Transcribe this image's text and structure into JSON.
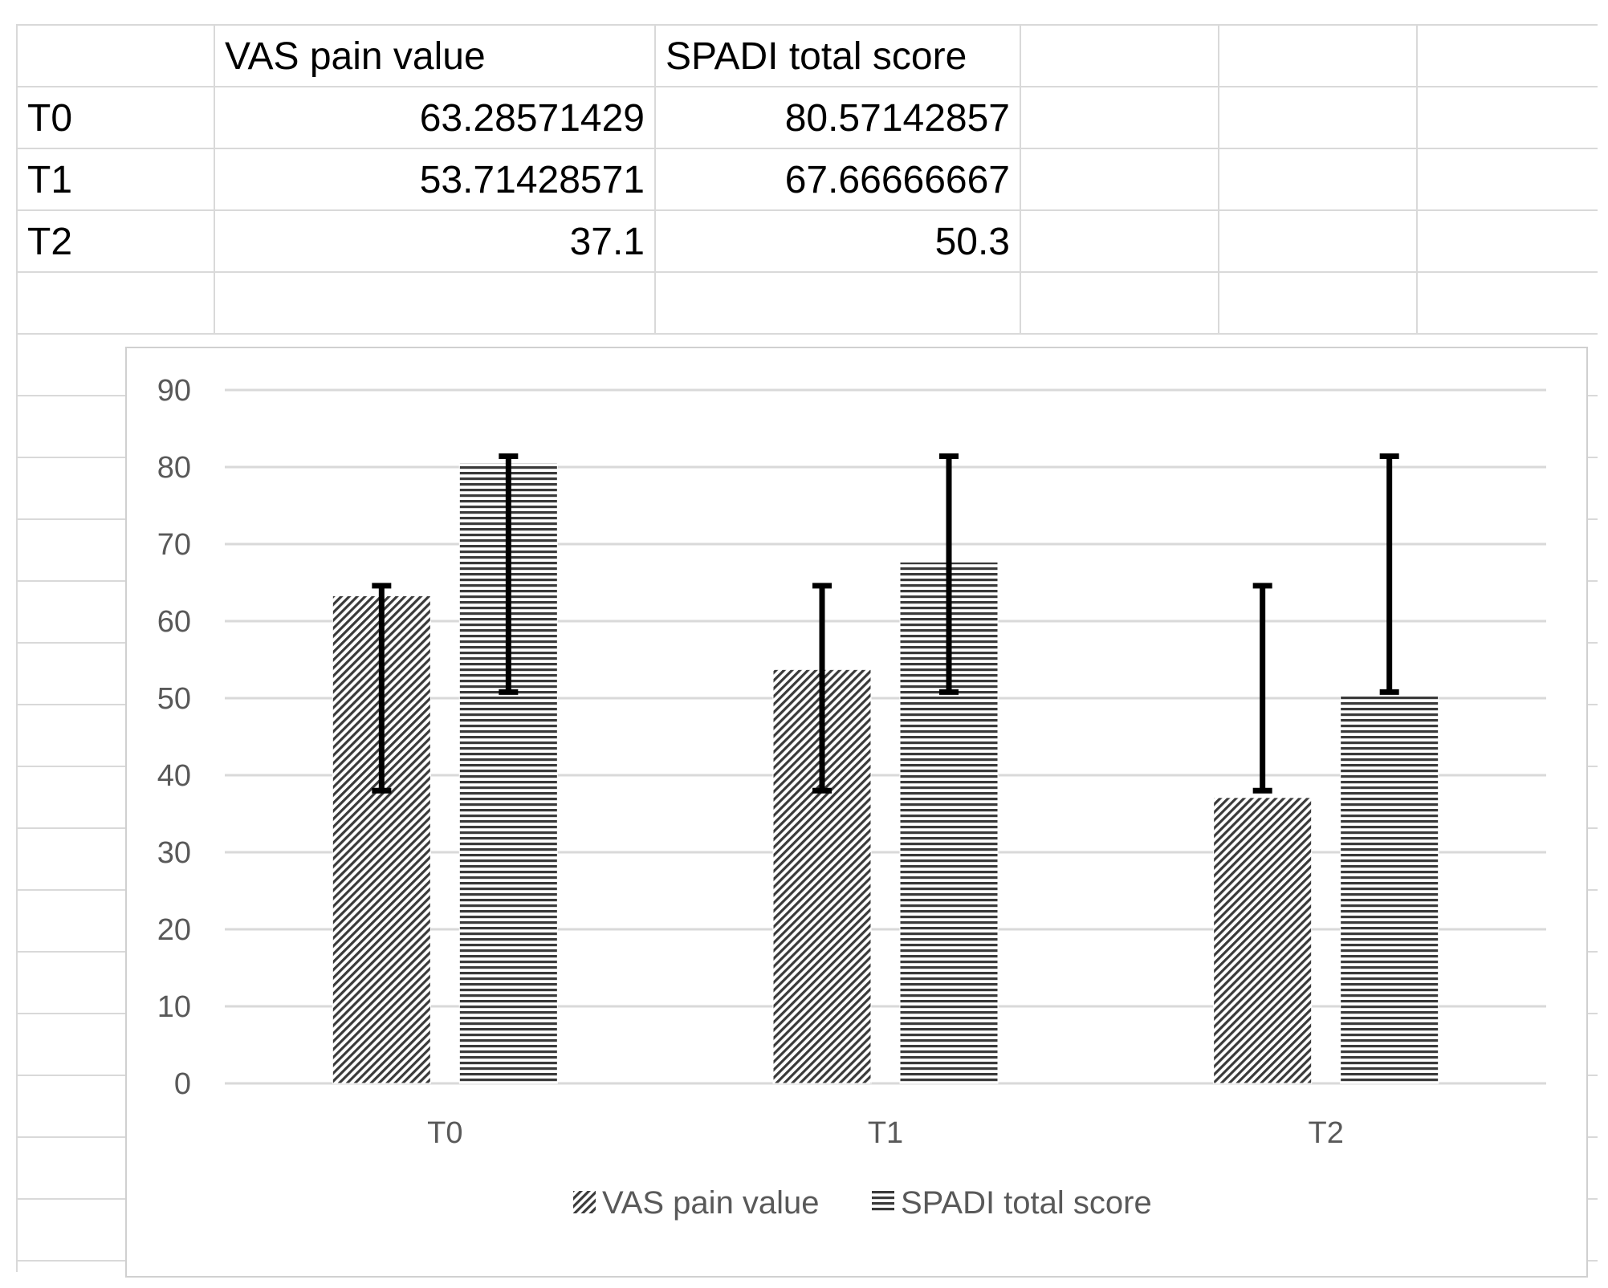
{
  "table": {
    "headers": [
      "",
      "VAS pain value",
      "SPADI total score"
    ],
    "rows": [
      {
        "label": "T0",
        "vas": "63.28571429",
        "spadi": "80.57142857"
      },
      {
        "label": "T1",
        "vas": "53.71428571",
        "spadi": "67.66666667"
      },
      {
        "label": "T2",
        "vas": "37.1",
        "spadi": "50.3"
      }
    ]
  },
  "chart_data": {
    "type": "bar",
    "categories": [
      "T0",
      "T1",
      "T2"
    ],
    "series": [
      {
        "name": "VAS pain value",
        "values": [
          63.28571429,
          53.71428571,
          37.1
        ],
        "error_low": [
          38,
          38,
          38
        ],
        "error_high": [
          64.6,
          64.6,
          64.6
        ],
        "pattern": "diagonal"
      },
      {
        "name": "SPADI total score",
        "values": [
          80.57142857,
          67.66666667,
          50.3
        ],
        "error_low": [
          50.8,
          50.8,
          50.8
        ],
        "error_high": [
          81.4,
          81.4,
          81.4
        ],
        "pattern": "horizontal"
      }
    ],
    "ylim": [
      0,
      90
    ],
    "yticks": [
      0,
      10,
      20,
      30,
      40,
      50,
      60,
      70,
      80,
      90
    ],
    "grid": true,
    "legend": "bottom",
    "title": "",
    "xlabel": "",
    "ylabel": ""
  }
}
